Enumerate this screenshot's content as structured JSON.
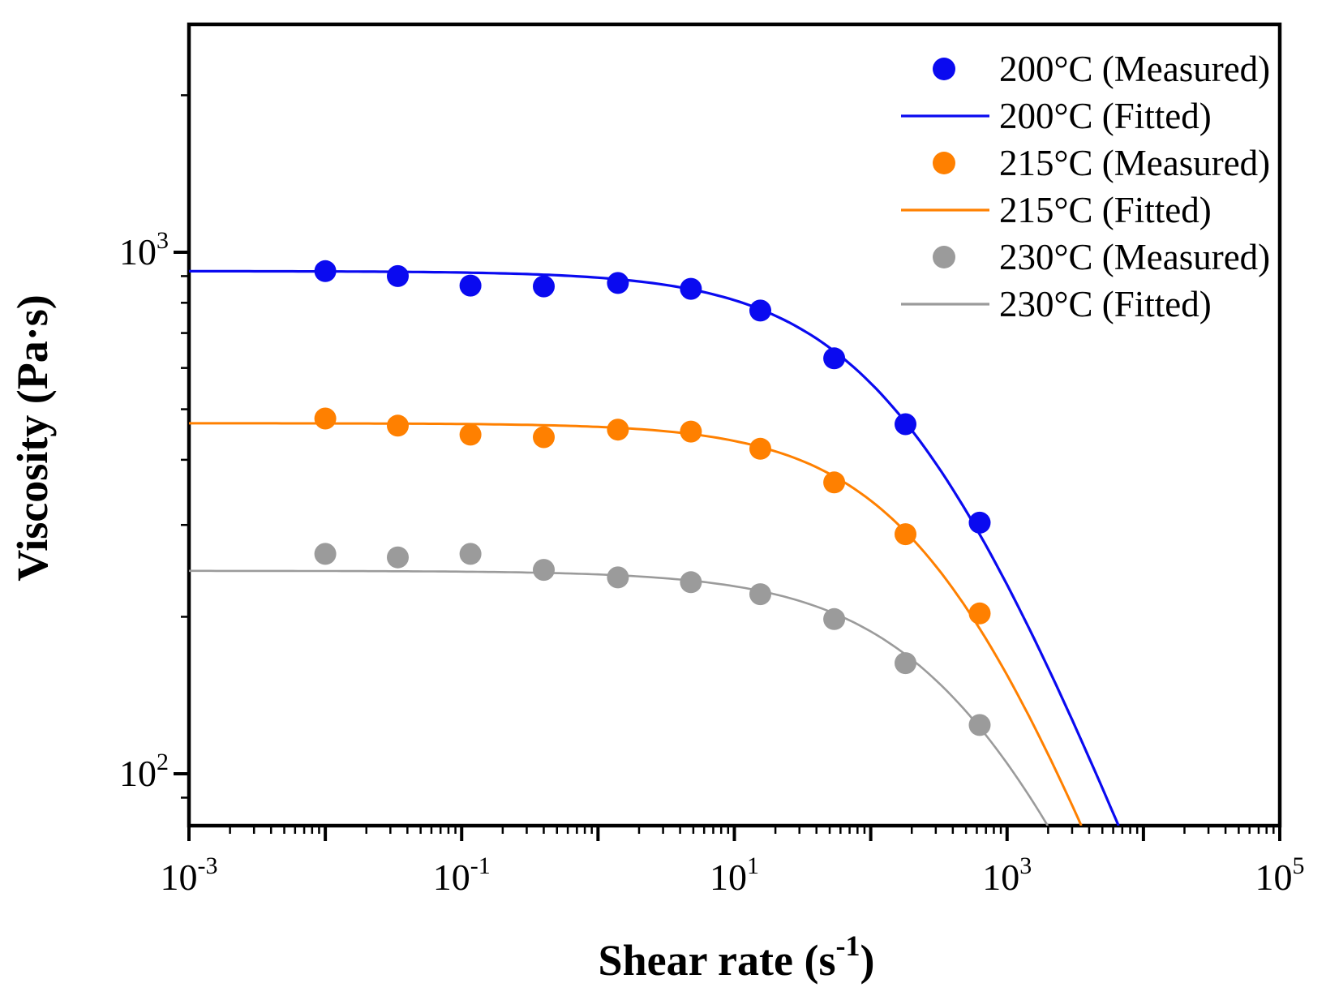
{
  "figure": {
    "background": "#ffffff",
    "kind": "log-log rheology flow curve"
  },
  "chart_data": {
    "type": "scatter",
    "title": "",
    "xlabel": "Shear rate (s⁻¹)",
    "ylabel": "Viscosity (Pa·s)",
    "x_scale": "log",
    "y_scale": "log",
    "xlim": [
      0.001,
      100000
    ],
    "ylim": [
      79,
      2740
    ],
    "grid": false,
    "legend_position": "upper right inside",
    "x_tick_labels": [
      {
        "base": "10",
        "exp": "-3",
        "decade": -3
      },
      {
        "base": "10",
        "exp": "-1",
        "decade": -1
      },
      {
        "base": "10",
        "exp": "1",
        "decade": 1
      },
      {
        "base": "10",
        "exp": "3",
        "decade": 3
      },
      {
        "base": "10",
        "exp": "5",
        "decade": 5
      }
    ],
    "y_tick_labels": [
      {
        "base": "10",
        "exp": "3",
        "decade": 3
      },
      {
        "base": "10",
        "exp": "2",
        "decade": 2
      }
    ],
    "xlabel_parts": {
      "pre": "Shear rate (s",
      "sup": "-1",
      "post": ")"
    },
    "shear_rates": [
      0.01,
      0.034,
      0.116,
      0.4,
      1.4,
      4.8,
      15.5,
      54,
      180,
      630
    ],
    "series": [
      {
        "id": "t200",
        "measured_label": "200°C (Measured)",
        "fitted_label": "200°C (Fitted)",
        "color": "#0a0af0",
        "line_width": 3.2,
        "viscosity_measured": [
          920,
          900,
          863,
          860,
          873,
          851,
          773,
          626,
          468,
          303
        ],
        "cross_model": {
          "eta0": 920,
          "lambda": 0.00514,
          "m": 0.67
        }
      },
      {
        "id": "t215",
        "measured_label": "215°C (Measured)",
        "fitted_label": "215°C (Fitted)",
        "color": "#ff8000",
        "line_width": 3.0,
        "viscosity_measured": [
          480,
          465,
          447,
          442,
          457,
          453,
          420,
          362,
          288,
          203
        ],
        "cross_model": {
          "eta0": 470,
          "lambda": 0.00277,
          "m": 0.7
        }
      },
      {
        "id": "t230",
        "measured_label": "230°C (Measured)",
        "fitted_label": "230°C (Fitted)",
        "color": "#9b9b9b",
        "line_width": 2.6,
        "viscosity_measured": [
          264,
          260,
          264,
          246,
          238,
          233,
          221,
          198,
          163,
          124
        ],
        "cross_model": {
          "eta0": 245,
          "lambda": 0.00158,
          "m": 0.64
        }
      }
    ],
    "legend": [
      {
        "series": "t200",
        "type": "marker",
        "label": "200°C (Measured)"
      },
      {
        "series": "t200",
        "type": "line",
        "label": "200°C (Fitted)"
      },
      {
        "series": "t215",
        "type": "marker",
        "label": "215°C (Measured)"
      },
      {
        "series": "t215",
        "type": "line",
        "label": "215°C (Fitted)"
      },
      {
        "series": "t230",
        "type": "marker",
        "label": "230°C (Measured)"
      },
      {
        "series": "t230",
        "type": "line",
        "label": "230°C (Fitted)"
      }
    ]
  }
}
